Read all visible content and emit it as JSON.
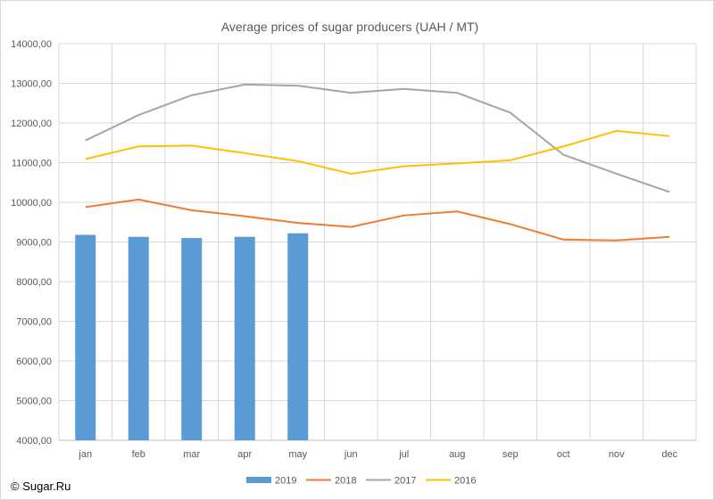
{
  "chart_data": {
    "type": "bar",
    "title": "Average prices of sugar producers (UAH / MT)",
    "xlabel": "",
    "ylabel": "",
    "ylim": [
      4000,
      14000
    ],
    "yticks": [
      "4000,00",
      "5000,00",
      "6000,00",
      "7000,00",
      "8000,00",
      "9000,00",
      "10000,00",
      "11000,00",
      "12000,00",
      "13000,00",
      "14000,00"
    ],
    "ytick_values": [
      4000,
      5000,
      6000,
      7000,
      8000,
      9000,
      10000,
      11000,
      12000,
      13000,
      14000
    ],
    "categories": [
      "jan",
      "feb",
      "mar",
      "apr",
      "may",
      "jun",
      "jul",
      "aug",
      "sep",
      "oct",
      "nov",
      "dec"
    ],
    "grid": true,
    "legend_position": "bottom",
    "series": [
      {
        "name": "2019",
        "type": "bar",
        "color": "#5B9BD5",
        "values": [
          9180,
          9130,
          9100,
          9130,
          9220,
          null,
          null,
          null,
          null,
          null,
          null,
          null
        ]
      },
      {
        "name": "2018",
        "type": "line",
        "color": "#ED7D31",
        "values": [
          9880,
          10070,
          9800,
          9650,
          9480,
          9380,
          9670,
          9770,
          9450,
          9060,
          9040,
          9130
        ]
      },
      {
        "name": "2017",
        "type": "line",
        "color": "#A5A5A5",
        "values": [
          11560,
          12200,
          12700,
          12970,
          12940,
          12760,
          12860,
          12760,
          12260,
          11200,
          10720,
          10260
        ]
      },
      {
        "name": "2016",
        "type": "line",
        "color": "#FFC000",
        "values": [
          11090,
          11410,
          11430,
          11240,
          11040,
          10720,
          10910,
          10980,
          11060,
          11410,
          11800,
          11670
        ]
      }
    ]
  },
  "footer": {
    "copyright": "© Sugar.Ru"
  }
}
